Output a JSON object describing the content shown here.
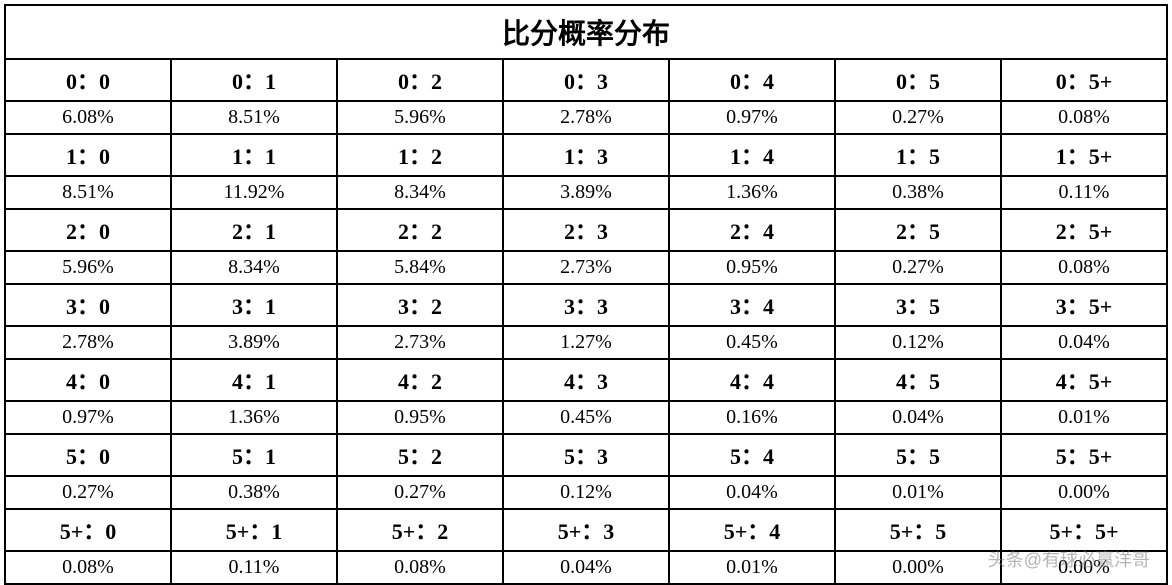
{
  "title": "比分概率分布",
  "columns": 7,
  "row_pairs": 7,
  "scores": [
    [
      "0：0",
      "0：1",
      "0：2",
      "0：3",
      "0：4",
      "0：5",
      "0：5+"
    ],
    [
      "1：0",
      "1：1",
      "1：2",
      "1：3",
      "1：4",
      "1：5",
      "1：5+"
    ],
    [
      "2：0",
      "2：1",
      "2：2",
      "2：3",
      "2：4",
      "2：5",
      "2：5+"
    ],
    [
      "3：0",
      "3：1",
      "3：2",
      "3：3",
      "3：4",
      "3：5",
      "3：5+"
    ],
    [
      "4：0",
      "4：1",
      "4：2",
      "4：3",
      "4：4",
      "4：5",
      "4：5+"
    ],
    [
      "5：0",
      "5：1",
      "5：2",
      "5：3",
      "5：4",
      "5：5",
      "5：5+"
    ],
    [
      "5+：0",
      "5+：1",
      "5+：2",
      "5+：3",
      "5+：4",
      "5+：5",
      "5+：5+"
    ]
  ],
  "probs": [
    [
      "6.08%",
      "8.51%",
      "5.96%",
      "2.78%",
      "0.97%",
      "0.27%",
      "0.08%"
    ],
    [
      "8.51%",
      "11.92%",
      "8.34%",
      "3.89%",
      "1.36%",
      "0.38%",
      "0.11%"
    ],
    [
      "5.96%",
      "8.34%",
      "5.84%",
      "2.73%",
      "0.95%",
      "0.27%",
      "0.08%"
    ],
    [
      "2.78%",
      "3.89%",
      "2.73%",
      "1.27%",
      "0.45%",
      "0.12%",
      "0.04%"
    ],
    [
      "0.97%",
      "1.36%",
      "0.95%",
      "0.45%",
      "0.16%",
      "0.04%",
      "0.01%"
    ],
    [
      "0.27%",
      "0.38%",
      "0.27%",
      "0.12%",
      "0.04%",
      "0.01%",
      "0.00%"
    ],
    [
      "0.08%",
      "0.11%",
      "0.08%",
      "0.04%",
      "0.01%",
      "0.00%",
      "0.00%"
    ]
  ],
  "watermark": "头条@有球必赢洋哥",
  "styles": {
    "title_fontsize": 28,
    "score_fontsize": 22,
    "prob_fontsize": 20,
    "border_color": "#000000",
    "border_width": 2,
    "background": "#ffffff",
    "font_family": "SimSun"
  }
}
